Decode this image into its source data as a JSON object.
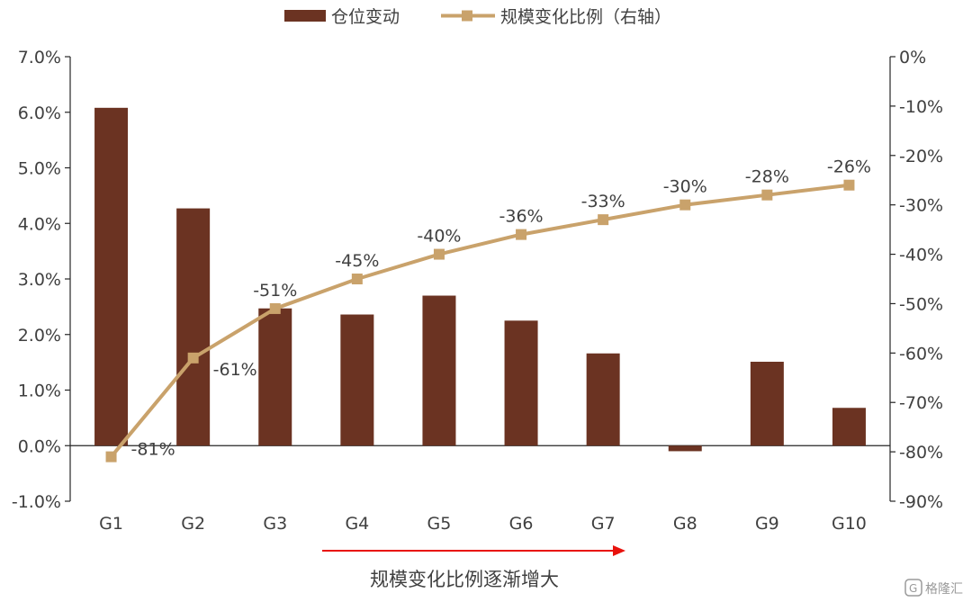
{
  "chart_data": {
    "type": "bar+line",
    "categories": [
      "G1",
      "G2",
      "G3",
      "G4",
      "G5",
      "G6",
      "G7",
      "G8",
      "G9",
      "G10"
    ],
    "series": [
      {
        "name": "仓位变动",
        "type": "bar",
        "axis": "left",
        "color": "#6B3322",
        "values": [
          0.0608,
          0.0427,
          0.0247,
          0.0236,
          0.027,
          0.0225,
          0.0166,
          -0.001,
          0.0151,
          0.0068
        ]
      },
      {
        "name": "规模变化比例（右轴）",
        "type": "line",
        "axis": "right",
        "color": "#C9A26B",
        "values": [
          -0.81,
          -0.61,
          -0.51,
          -0.45,
          -0.4,
          -0.36,
          -0.33,
          -0.3,
          -0.28,
          -0.26
        ],
        "data_labels": [
          "-81%",
          "-61%",
          "-51%",
          "-45%",
          "-40%",
          "-36%",
          "-33%",
          "-30%",
          "-28%",
          "-26%"
        ]
      }
    ],
    "y_left": {
      "lim": [
        -0.01,
        0.07
      ],
      "ticks": [
        -0.01,
        0.0,
        0.01,
        0.02,
        0.03,
        0.04,
        0.05,
        0.06,
        0.07
      ],
      "tick_labels": [
        "-1.0%",
        "0.0%",
        "1.0%",
        "2.0%",
        "3.0%",
        "4.0%",
        "5.0%",
        "6.0%",
        "7.0%"
      ]
    },
    "y_right": {
      "lim": [
        -0.9,
        0.0
      ],
      "ticks": [
        0.0,
        -0.1,
        -0.2,
        -0.3,
        -0.4,
        -0.5,
        -0.6,
        -0.7,
        -0.8,
        -0.9
      ],
      "tick_labels": [
        "0%",
        "-10%",
        "-20%",
        "-30%",
        "-40%",
        "-50%",
        "-60%",
        "-70%",
        "-80%",
        "-90%"
      ]
    },
    "annotation": "规模变化比例逐渐增大",
    "legend_position": "top-center",
    "grid": false
  },
  "watermark": "格隆汇"
}
